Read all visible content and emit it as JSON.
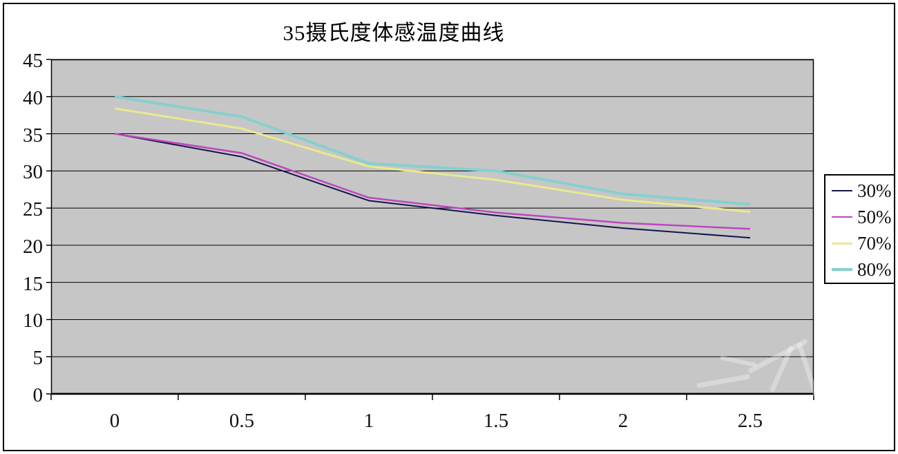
{
  "chart_data": {
    "type": "line",
    "title": "35摄氏度体感温度曲线",
    "xlabel": "",
    "ylabel": "",
    "x": [
      0,
      0.5,
      1,
      1.5,
      2,
      2.5
    ],
    "x_tick_labels": [
      "0",
      "0.5",
      "1",
      "1.5",
      "2",
      "2.5"
    ],
    "y_tick_labels": [
      "45",
      "40",
      "35",
      "30",
      "25",
      "20",
      "15",
      "10",
      "5",
      "0"
    ],
    "ylim": [
      0,
      45
    ],
    "y_tick_step": 5,
    "grid": "horizontal",
    "legend_position": "right",
    "series": [
      {
        "name": "30%",
        "color": "#14144E",
        "width": 2,
        "values": [
          35,
          31.9,
          26,
          24,
          22.3,
          21
        ]
      },
      {
        "name": "50%",
        "color": "#BC46BE",
        "width": 2.5,
        "values": [
          35,
          32.4,
          26.4,
          24.4,
          23,
          22.2
        ]
      },
      {
        "name": "70%",
        "color": "#E9E98F",
        "width": 3,
        "values": [
          38.4,
          35.7,
          30.6,
          28.8,
          26.1,
          24.5
        ]
      },
      {
        "name": "80%",
        "color": "#85D0CE",
        "width": 4,
        "values": [
          40,
          37.3,
          31,
          30,
          26.9,
          25.5
        ]
      }
    ],
    "colors": {
      "chart_bg": "#FFFFFF",
      "plot_bg": "#C6C6C6",
      "gridline": "#000000",
      "axis": "#000000",
      "border": "#000000"
    }
  }
}
